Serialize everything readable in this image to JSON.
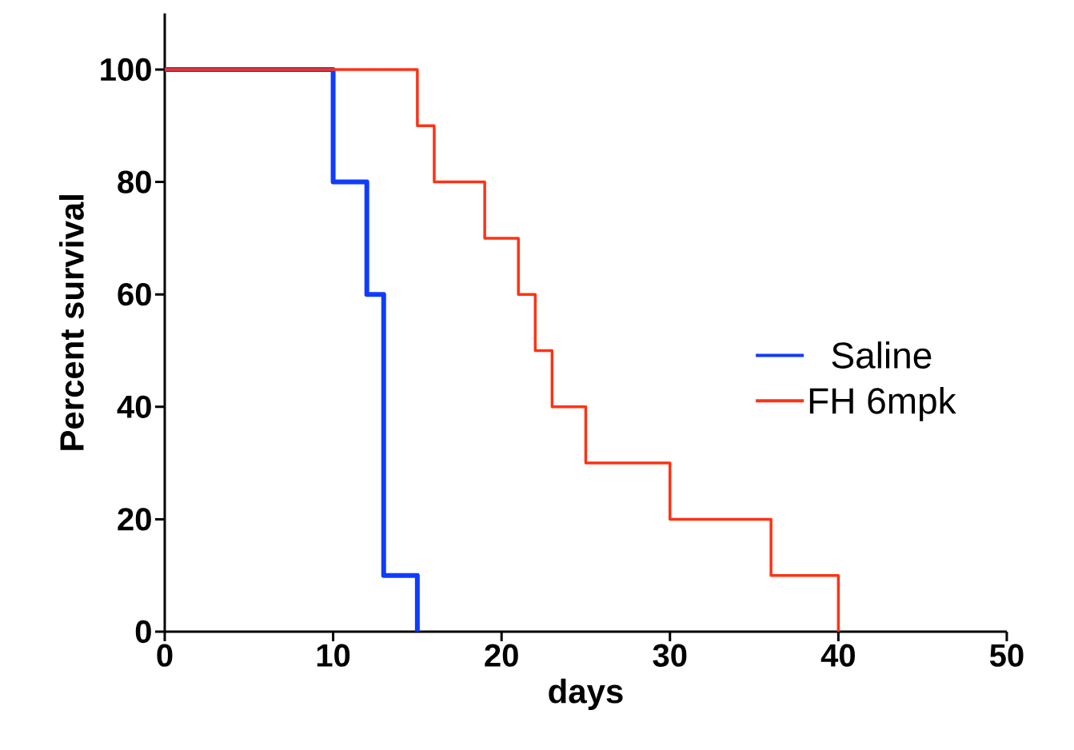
{
  "chart_data": {
    "type": "step",
    "xlabel": "days",
    "ylabel": "Percent survival",
    "xlim": [
      0,
      50
    ],
    "xticks": [
      0,
      10,
      20,
      30,
      40,
      50
    ],
    "ylim": [
      0,
      110
    ],
    "yticks": [
      0,
      20,
      40,
      60,
      80,
      100
    ],
    "grid": false,
    "legend": "right",
    "marker": "none",
    "series": [
      {
        "name": "Saline",
        "color": "#0f3cff",
        "x": [
          0,
          10,
          12,
          13,
          15
        ],
        "values": [
          100,
          80,
          60,
          10,
          0
        ]
      },
      {
        "name": "FH 6mpk",
        "color": "#ff3214",
        "x": [
          0,
          15,
          16,
          19,
          21,
          22,
          23,
          25,
          30,
          36,
          40
        ],
        "values": [
          100,
          90,
          80,
          70,
          60,
          50,
          40,
          30,
          20,
          10,
          0
        ]
      }
    ]
  }
}
